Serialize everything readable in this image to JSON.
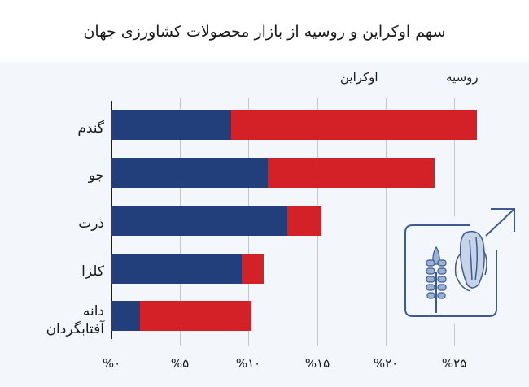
{
  "chart_data": {
    "type": "bar",
    "orientation": "horizontal",
    "stacked": true,
    "title": "سهم اوکراین و روسیه از بازار محصولات کشاورزی جهان",
    "categories": [
      "گندم",
      "جو",
      "ذرت",
      "کلزا",
      "دانه آفتابگردان"
    ],
    "series": [
      {
        "name": "اوکراین",
        "color": "#223f7c",
        "values": [
          8.7,
          11.4,
          12.8,
          9.5,
          2.1
        ]
      },
      {
        "name": "روسیه",
        "color": "#d42027",
        "values": [
          17.9,
          12.1,
          2.5,
          1.6,
          8.1
        ]
      }
    ],
    "xlabel": "",
    "ylabel": "",
    "xlim": [
      0,
      25
    ],
    "x_tick_labels": [
      "%۰",
      "%۵",
      "%۱۰",
      "%۱۵",
      "%۲۰",
      "%۲۵"
    ],
    "x_ticks": [
      0,
      5,
      10,
      15,
      20,
      25
    ],
    "grid": "vertical",
    "legend_position": "top-right"
  },
  "header": {
    "title": "سهم اوکراین و روسیه از بازار محصولات کشاورزی جهان"
  },
  "legend": {
    "ukraine": "اوکراین",
    "russia": "روسیه"
  },
  "categories": {
    "wheat": "گندم",
    "barley": "جو",
    "corn": "ذرت",
    "rapeseed": "کلزا",
    "sunflower_line1": "دانه",
    "sunflower_line2": "آفتابگردان"
  },
  "ticks": [
    "%۰",
    "%۵",
    "%۱۰",
    "%۱۵",
    "%۲۰",
    "%۲۵"
  ],
  "colors": {
    "ukraine": "#223f7c",
    "russia": "#d42027",
    "background": "#f3f6fa"
  },
  "icon": {
    "name": "grain-export-icon"
  }
}
